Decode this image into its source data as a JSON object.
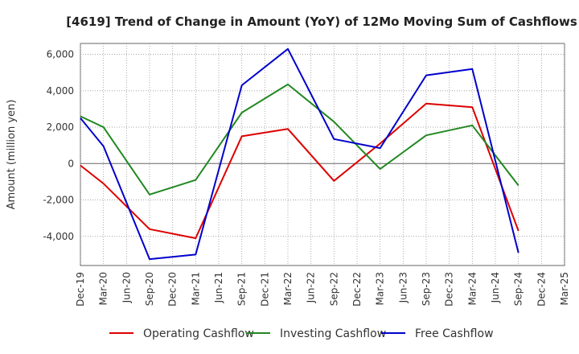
{
  "chart_data": {
    "type": "line",
    "title": "[4619]  Trend of Change in Amount (YoY) of 12Mo Moving Sum of Cashflows",
    "xlabel": "",
    "ylabel": "Amount (million yen)",
    "ylim": [
      -5600,
      6600
    ],
    "yticks": [
      6000,
      4000,
      2000,
      0,
      -2000,
      -4000
    ],
    "ytick_labels": [
      "6,000",
      "4,000",
      "2,000",
      "0",
      "-2,000",
      "-4,000"
    ],
    "grid": true,
    "legend_position": "bottom",
    "categories": [
      "Dec-19",
      "Mar-20",
      "Jun-20",
      "Sep-20",
      "Dec-20",
      "Mar-21",
      "Jun-21",
      "Sep-21",
      "Dec-21",
      "Mar-22",
      "Jun-22",
      "Sep-22",
      "Dec-22",
      "Mar-23",
      "Jun-23",
      "Sep-23",
      "Dec-23",
      "Mar-24",
      "Jun-24",
      "Sep-24",
      "Dec-24",
      "Mar-25"
    ],
    "series": [
      {
        "name": "Operating Cashflow",
        "color": "#dd0000",
        "values": [
          -100,
          -1100,
          null,
          -3600,
          null,
          -4100,
          null,
          1500,
          null,
          1900,
          null,
          -950,
          null,
          1100,
          null,
          3300,
          null,
          3100,
          null,
          -3700,
          null,
          null
        ]
      },
      {
        "name": "Investing Cashflow",
        "color": "#228822",
        "values": [
          2600,
          2000,
          null,
          -1700,
          null,
          -900,
          null,
          2800,
          null,
          4350,
          null,
          2300,
          null,
          -300,
          null,
          1550,
          null,
          2100,
          null,
          -1200,
          null,
          null
        ]
      },
      {
        "name": "Free Cashflow",
        "color": "#0000cc",
        "values": [
          2500,
          950,
          null,
          -5250,
          null,
          -5000,
          null,
          4300,
          null,
          6300,
          null,
          1350,
          null,
          850,
          null,
          4850,
          null,
          5200,
          null,
          -4900,
          null,
          null
        ]
      }
    ]
  }
}
